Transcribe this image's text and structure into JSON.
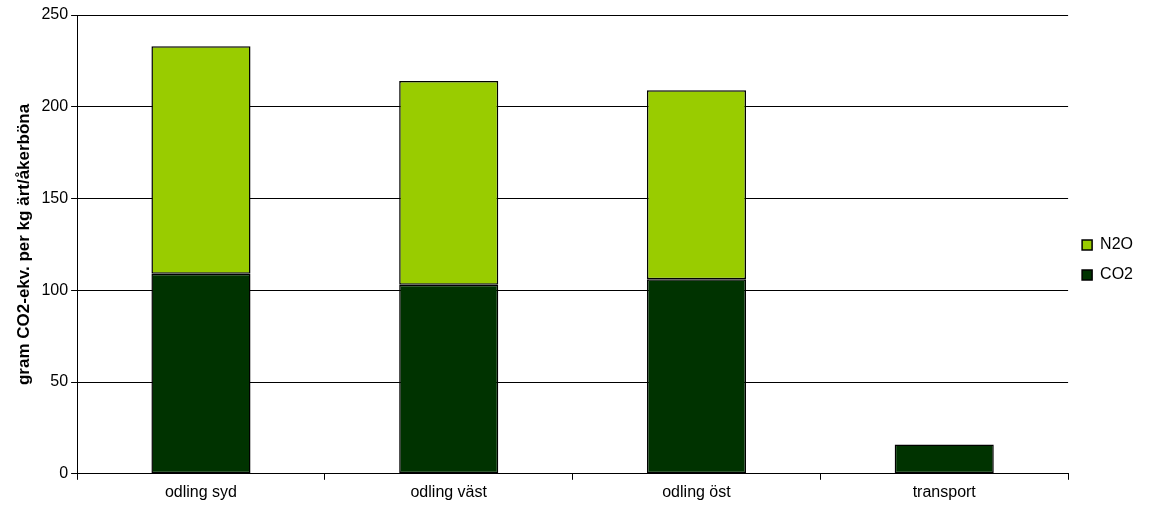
{
  "chart_data": {
    "type": "bar",
    "stacked": true,
    "ylabel": "gram CO2-ekv. per kg ärt/åkerböna",
    "categories": [
      "odling syd",
      "odling väst",
      "odling öst",
      "transport"
    ],
    "series": [
      {
        "name": "CO2",
        "color": "#003300",
        "values": [
          109,
          103,
          106,
          16
        ]
      },
      {
        "name": "N2O",
        "color": "#99cc00",
        "values": [
          124,
          111,
          103,
          null
        ]
      }
    ],
    "ylim": [
      0,
      250
    ],
    "yticks": [
      0,
      50,
      100,
      150,
      200,
      250
    ],
    "grid": "y",
    "legend": "right"
  }
}
